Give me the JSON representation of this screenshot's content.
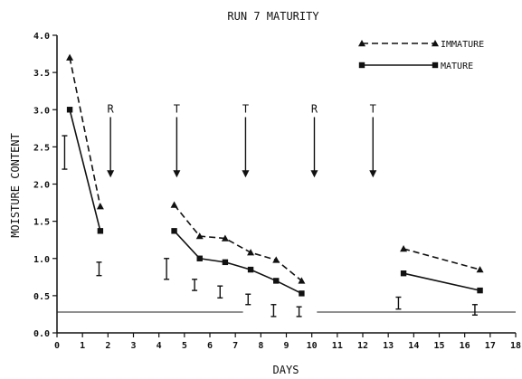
{
  "chart_data": {
    "type": "line",
    "title": "RUN 7 MATURITY",
    "xlabel": "DAYS",
    "ylabel": "MOISTURE CONTENT",
    "xlim": [
      0,
      18
    ],
    "ylim": [
      0,
      4.0
    ],
    "xticks": [
      0,
      1,
      2,
      3,
      4,
      5,
      6,
      7,
      8,
      9,
      10,
      11,
      12,
      13,
      14,
      15,
      16,
      17,
      18
    ],
    "xtick_labels": [
      "0",
      "1",
      "2",
      "3",
      "4",
      "5",
      "6",
      "7",
      "8",
      "9",
      "10",
      "11",
      "12",
      "13",
      "14",
      "15",
      "16",
      "17",
      "18"
    ],
    "yticks": [
      0,
      0.5,
      1.0,
      1.5,
      2.0,
      2.5,
      3.0,
      3.5,
      4.0
    ],
    "ytick_labels": [
      "0.0",
      "0.5",
      "1.0",
      "1.5",
      "2.0",
      "2.5",
      "3.0",
      "3.5",
      "4.0"
    ],
    "grid": false,
    "legend_position": "top-right",
    "series": [
      {
        "name": "IMMATURE",
        "marker": "triangle",
        "line_style": "dashed",
        "segments": [
          [
            [
              0.5,
              3.7
            ],
            [
              1.7,
              1.7
            ]
          ],
          [
            [
              4.6,
              1.72
            ],
            [
              5.6,
              1.3
            ],
            [
              6.6,
              1.27
            ],
            [
              7.6,
              1.08
            ],
            [
              8.6,
              0.98
            ],
            [
              9.6,
              0.7
            ]
          ],
          [
            [
              13.6,
              1.13
            ],
            [
              16.6,
              0.85
            ]
          ]
        ]
      },
      {
        "name": "MATURE",
        "marker": "square",
        "line_style": "solid",
        "segments": [
          [
            [
              0.5,
              3.0
            ],
            [
              1.7,
              1.37
            ]
          ],
          [
            [
              4.6,
              1.37
            ],
            [
              5.6,
              1.0
            ],
            [
              6.6,
              0.95
            ],
            [
              7.6,
              0.85
            ],
            [
              8.6,
              0.7
            ],
            [
              9.6,
              0.53
            ]
          ],
          [
            [
              13.6,
              0.8
            ],
            [
              16.6,
              0.57
            ]
          ]
        ]
      }
    ],
    "error_bars": [
      {
        "x": 0.3,
        "low": 2.2,
        "high": 2.65
      },
      {
        "x": 1.65,
        "low": 0.77,
        "high": 0.95
      },
      {
        "x": 4.3,
        "low": 0.72,
        "high": 1.0
      },
      {
        "x": 5.4,
        "low": 0.57,
        "high": 0.72
      },
      {
        "x": 6.4,
        "low": 0.47,
        "high": 0.63
      },
      {
        "x": 7.5,
        "low": 0.38,
        "high": 0.52
      },
      {
        "x": 8.5,
        "low": 0.22,
        "high": 0.38
      },
      {
        "x": 9.5,
        "low": 0.22,
        "high": 0.35
      },
      {
        "x": 13.4,
        "low": 0.32,
        "high": 0.48
      },
      {
        "x": 16.4,
        "low": 0.24,
        "high": 0.38
      }
    ],
    "reference_lines": [
      {
        "y": 0.28,
        "x_start": 0,
        "x_end": 7.3
      },
      {
        "y": 0.28,
        "x_start": 10.2,
        "x_end": 18
      }
    ],
    "event_markers": [
      {
        "label": "R",
        "x": 2.1,
        "y_top": 2.9,
        "y_bottom": 2.1
      },
      {
        "label": "T",
        "x": 4.7,
        "y_top": 2.9,
        "y_bottom": 2.1
      },
      {
        "label": "T",
        "x": 7.4,
        "y_top": 2.9,
        "y_bottom": 2.1
      },
      {
        "label": "R",
        "x": 10.1,
        "y_top": 2.9,
        "y_bottom": 2.1
      },
      {
        "label": "T",
        "x": 12.4,
        "y_top": 2.9,
        "y_bottom": 2.1
      }
    ]
  }
}
